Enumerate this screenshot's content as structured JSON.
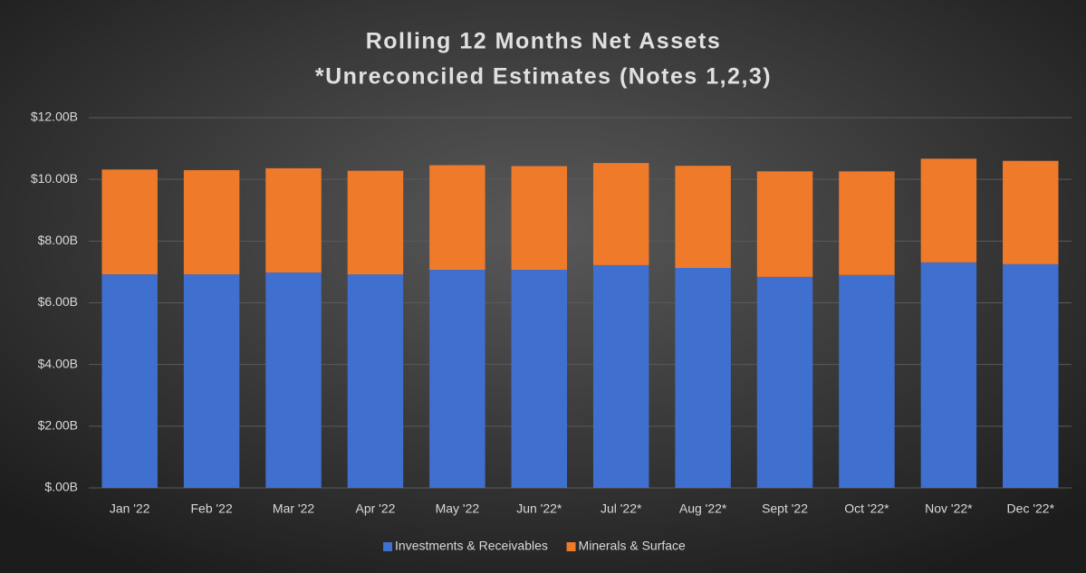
{
  "chart_data": {
    "type": "stacked_bar",
    "title": "Rolling 12 Months Net Assets",
    "subtitle": "*Unreconciled Estimates (Notes 1,2,3)",
    "categories": [
      "Jan '22",
      "Feb '22",
      "Mar '22",
      "Apr '22",
      "May '22",
      "Jun '22*",
      "Jul '22*",
      "Aug '22*",
      "Sept '22",
      "Oct '22*",
      "Nov '22*",
      "Dec '22*"
    ],
    "series": [
      {
        "name": "Investments & Receivables",
        "color": "#3f6fcf",
        "values": [
          6.92,
          6.92,
          6.98,
          6.92,
          7.07,
          7.07,
          7.22,
          7.13,
          6.84,
          6.9,
          7.31,
          7.25
        ]
      },
      {
        "name": "Minerals & Surface",
        "color": "#ee7a2a",
        "values": [
          3.4,
          3.38,
          3.38,
          3.36,
          3.39,
          3.36,
          3.31,
          3.31,
          3.42,
          3.36,
          3.36,
          3.35
        ]
      }
    ],
    "ylim": [
      0,
      12
    ],
    "yticks": [
      {
        "value": 0,
        "label": "$.00B"
      },
      {
        "value": 2,
        "label": "$2.00B"
      },
      {
        "value": 4,
        "label": "$4.00B"
      },
      {
        "value": 6,
        "label": "$6.00B"
      },
      {
        "value": 8,
        "label": "$8.00B"
      },
      {
        "value": 10,
        "label": "$10.00B"
      },
      {
        "value": 12,
        "label": "$12.00B"
      }
    ],
    "grid": true,
    "legend": "bottom"
  }
}
